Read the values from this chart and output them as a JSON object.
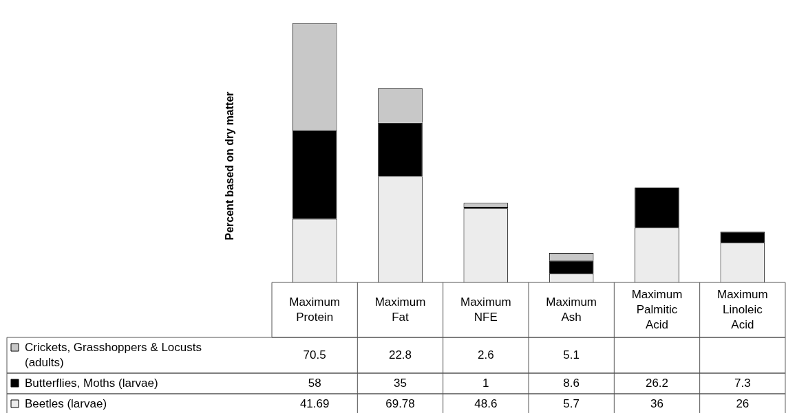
{
  "chart_data": {
    "type": "bar",
    "ylabel": "Percent based on dry matter",
    "categories": [
      "Maximum Protein",
      "Maximum Fat",
      "Maximum NFE",
      "Maximum Ash",
      "Maximum Palmitic Acid",
      "Maximum Linoleic Acid"
    ],
    "series": [
      {
        "name": "Beetles (larvae)",
        "color": "#ececec",
        "values": [
          41.69,
          69.78,
          48.6,
          5.7,
          36,
          26
        ]
      },
      {
        "name": "Butterflies, Moths (larvae)",
        "color": "#000000",
        "values": [
          58,
          35,
          1,
          8.6,
          26.2,
          7.3
        ]
      },
      {
        "name": "Crickets, Grasshoppers & Locusts (adults)",
        "color": "#c8c8c8",
        "values": [
          70.5,
          22.8,
          2.6,
          5.1,
          null,
          null
        ]
      }
    ],
    "stacked": true,
    "data_labels": true,
    "legend": "bottom",
    "tick_labels": "x"
  }
}
